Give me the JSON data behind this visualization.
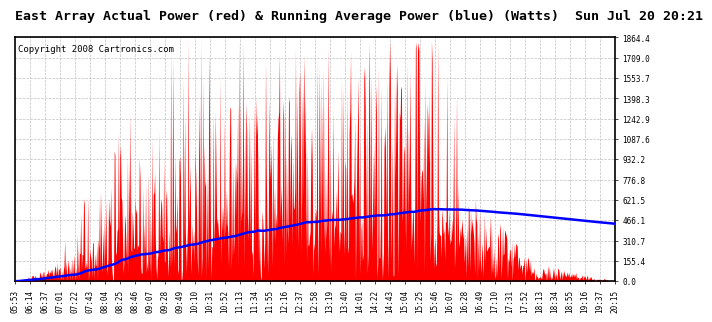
{
  "title": "East Array Actual Power (red) & Running Average Power (blue) (Watts)  Sun Jul 20 20:21",
  "copyright": "Copyright 2008 Cartronics.com",
  "ylabel_values": [
    0.0,
    155.4,
    310.7,
    466.1,
    621.5,
    776.8,
    932.2,
    1087.6,
    1242.9,
    1398.3,
    1553.7,
    1709.0,
    1864.4
  ],
  "ymax": 1864.4,
  "ymin": 0.0,
  "xtick_labels": [
    "05:53",
    "06:14",
    "06:37",
    "07:01",
    "07:22",
    "07:43",
    "08:04",
    "08:25",
    "08:46",
    "09:07",
    "09:28",
    "09:49",
    "10:10",
    "10:31",
    "10:52",
    "11:13",
    "11:34",
    "11:55",
    "12:16",
    "12:37",
    "12:58",
    "13:19",
    "13:40",
    "14:01",
    "14:22",
    "14:43",
    "15:04",
    "15:25",
    "15:46",
    "16:07",
    "16:28",
    "16:49",
    "17:10",
    "17:31",
    "17:52",
    "18:13",
    "18:34",
    "18:55",
    "19:16",
    "19:37",
    "20:15"
  ],
  "fill_color": "#FF0000",
  "line_color": "#0000FF",
  "bg_color": "#FFFFFF",
  "grid_color": "#C0C0C0",
  "title_fontsize": 9.5,
  "copyright_fontsize": 6.5,
  "tick_fontsize": 5.5
}
